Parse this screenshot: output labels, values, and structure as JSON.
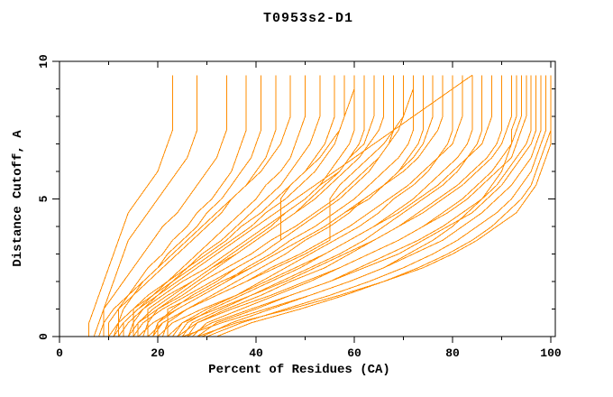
{
  "page": {
    "background": "#ffffff"
  },
  "chart_data": {
    "type": "line",
    "title": "T0953s2-D1",
    "xlabel": "Percent of Residues (CA)",
    "ylabel": "Distance Cutoff, A",
    "xlim": [
      0,
      101
    ],
    "ylim": [
      0,
      10
    ],
    "x_major_ticks": [
      0,
      20,
      40,
      60,
      80,
      100
    ],
    "x_major_tick_labels": [
      "0",
      "20",
      "40",
      "60",
      "80",
      "100"
    ],
    "x_minor_ticks": [
      10,
      30,
      50,
      70,
      90
    ],
    "y_major_ticks": [
      0,
      5,
      10
    ],
    "y_major_tick_labels": [
      "0",
      "5",
      "10"
    ],
    "y_minor_ticks": [
      1,
      2,
      3,
      4,
      6,
      7,
      8,
      9
    ],
    "grid": false,
    "legend": false,
    "line_color": "#ff8c00",
    "axis_color": "#000000",
    "cutoffs": [
      0,
      0.5,
      1,
      1.5,
      2,
      2.5,
      3,
      3.5,
      4,
      4.5,
      5,
      5.5,
      6,
      6.5,
      7,
      7.5,
      8,
      8.5,
      9,
      9.5
    ],
    "curves": [
      [
        6,
        6,
        7,
        8,
        9,
        10,
        11,
        12,
        13,
        14,
        16,
        18,
        20,
        21,
        22,
        23,
        23,
        23,
        23,
        23
      ],
      [
        7,
        8,
        9,
        10,
        11,
        12,
        13,
        14,
        16,
        18,
        20,
        22,
        24,
        26,
        27,
        28,
        28,
        28,
        28,
        28
      ],
      [
        9,
        9,
        9,
        11,
        13,
        15,
        17,
        19,
        21,
        24,
        26,
        28,
        30,
        32,
        33,
        34,
        34,
        34,
        34,
        34
      ],
      [
        10,
        10,
        12,
        14,
        16,
        18,
        21,
        23,
        26,
        28,
        31,
        33,
        35,
        36,
        37,
        38,
        38,
        38,
        38,
        38
      ],
      [
        11,
        12,
        13,
        15,
        17,
        20,
        22,
        25,
        28,
        30,
        33,
        35,
        37,
        39,
        40,
        41,
        41,
        41,
        41,
        41
      ],
      [
        12,
        12,
        12,
        15,
        18,
        21,
        24,
        27,
        30,
        33,
        35,
        38,
        40,
        42,
        43,
        44,
        44,
        44,
        44,
        44
      ],
      [
        8,
        9,
        11,
        14,
        17,
        20,
        23,
        26,
        29,
        32,
        35,
        38,
        41,
        43,
        45,
        46,
        47,
        47,
        47,
        47
      ],
      [
        13,
        13,
        16,
        19,
        22,
        25,
        28,
        31,
        34,
        37,
        40,
        42,
        45,
        47,
        48,
        49,
        50,
        50,
        50,
        50
      ],
      [
        14,
        15,
        17,
        20,
        23,
        26,
        29,
        33,
        36,
        39,
        42,
        45,
        47,
        49,
        51,
        52,
        53,
        53,
        53,
        53
      ],
      [
        15,
        15,
        15,
        18,
        22,
        26,
        30,
        34,
        37,
        41,
        44,
        47,
        50,
        52,
        54,
        55,
        56,
        56,
        56,
        56
      ],
      [
        10,
        12,
        15,
        19,
        23,
        27,
        31,
        35,
        39,
        42,
        46,
        49,
        52,
        54,
        56,
        57,
        58,
        58,
        58,
        58
      ],
      [
        16,
        16,
        19,
        23,
        27,
        31,
        35,
        39,
        43,
        46,
        50,
        53,
        55,
        57,
        59,
        60,
        60,
        60,
        60,
        60
      ],
      [
        17,
        18,
        20,
        24,
        28,
        32,
        36,
        40,
        44,
        48,
        51,
        54,
        57,
        59,
        61,
        62,
        62,
        62,
        62,
        62
      ],
      [
        12,
        14,
        17,
        21,
        25,
        30,
        34,
        38,
        42,
        46,
        50,
        53,
        57,
        59,
        62,
        63,
        64,
        64,
        64,
        64
      ],
      [
        18,
        18,
        18,
        22,
        27,
        31,
        36,
        40,
        44,
        48,
        52,
        55,
        58,
        61,
        63,
        65,
        66,
        66,
        66,
        66
      ],
      [
        19,
        20,
        23,
        27,
        32,
        36,
        41,
        45,
        49,
        53,
        57,
        60,
        63,
        65,
        67,
        68,
        68,
        68,
        68,
        68
      ],
      [
        14,
        16,
        20,
        25,
        29,
        34,
        39,
        43,
        48,
        52,
        56,
        59,
        62,
        65,
        67,
        69,
        70,
        70,
        70,
        70
      ],
      [
        20,
        20,
        24,
        29,
        34,
        38,
        43,
        47,
        52,
        56,
        60,
        63,
        66,
        69,
        71,
        72,
        72,
        72,
        72,
        72
      ],
      [
        21,
        22,
        26,
        31,
        36,
        41,
        46,
        50,
        55,
        59,
        62,
        66,
        69,
        71,
        73,
        74,
        74,
        74,
        74,
        74
      ],
      [
        16,
        19,
        24,
        29,
        34,
        39,
        44,
        49,
        54,
        58,
        62,
        66,
        69,
        72,
        74,
        75,
        76,
        76,
        76,
        76
      ],
      [
        22,
        22,
        22,
        28,
        33,
        39,
        44,
        49,
        54,
        58,
        63,
        66,
        70,
        73,
        75,
        77,
        78,
        78,
        78,
        78
      ],
      [
        23,
        25,
        30,
        36,
        41,
        46,
        51,
        56,
        61,
        65,
        68,
        72,
        75,
        77,
        79,
        80,
        80,
        80,
        80,
        80
      ],
      [
        18,
        21,
        26,
        32,
        38,
        43,
        49,
        54,
        59,
        63,
        67,
        71,
        74,
        77,
        80,
        81,
        82,
        82,
        82,
        82
      ],
      [
        24,
        26,
        31,
        37,
        43,
        49,
        54,
        59,
        64,
        68,
        72,
        75,
        78,
        81,
        83,
        84,
        84,
        84,
        84,
        84
      ],
      [
        25,
        27,
        33,
        39,
        45,
        51,
        57,
        62,
        66,
        70,
        74,
        78,
        81,
        83,
        85,
        86,
        86,
        86,
        86,
        86
      ],
      [
        20,
        23,
        29,
        36,
        42,
        48,
        54,
        59,
        64,
        69,
        73,
        77,
        80,
        83,
        86,
        87,
        88,
        88,
        88,
        88
      ],
      [
        26,
        28,
        34,
        41,
        47,
        54,
        59,
        64,
        69,
        73,
        77,
        81,
        84,
        87,
        89,
        90,
        90,
        90,
        90,
        90
      ],
      [
        22,
        25,
        32,
        39,
        46,
        52,
        58,
        64,
        69,
        74,
        78,
        82,
        85,
        88,
        90,
        91,
        92,
        92,
        92,
        92
      ],
      [
        27,
        30,
        37,
        44,
        51,
        57,
        63,
        69,
        74,
        78,
        82,
        85,
        88,
        90,
        92,
        93,
        94,
        94,
        94,
        94
      ],
      [
        24,
        28,
        35,
        43,
        50,
        57,
        63,
        69,
        74,
        79,
        83,
        86,
        89,
        92,
        93,
        94,
        95,
        95,
        95,
        95
      ],
      [
        28,
        32,
        40,
        47,
        55,
        61,
        67,
        73,
        78,
        82,
        86,
        89,
        91,
        93,
        95,
        96,
        96,
        96,
        96,
        96
      ],
      [
        26,
        31,
        39,
        47,
        55,
        62,
        69,
        74,
        79,
        84,
        87,
        90,
        92,
        94,
        96,
        97,
        97,
        97,
        97,
        97
      ],
      [
        29,
        35,
        43,
        51,
        59,
        66,
        72,
        78,
        82,
        86,
        89,
        92,
        94,
        96,
        97,
        98,
        98,
        98,
        98,
        98
      ],
      [
        30,
        37,
        46,
        55,
        63,
        70,
        76,
        81,
        85,
        89,
        92,
        94,
        96,
        97,
        98,
        99,
        99,
        99,
        99,
        99
      ],
      [
        32,
        39,
        49,
        58,
        66,
        73,
        79,
        84,
        88,
        91,
        94,
        96,
        97,
        98,
        99,
        100,
        100,
        100,
        100,
        100
      ],
      [
        28,
        36,
        47,
        57,
        66,
        74,
        80,
        85,
        89,
        93,
        95,
        97,
        98,
        99,
        100,
        100,
        100,
        100,
        100,
        100
      ],
      [
        15,
        17,
        21,
        26,
        31,
        36,
        41,
        45,
        45,
        45,
        45,
        47,
        50,
        53,
        55,
        57,
        58,
        59,
        60,
        60
      ],
      [
        19,
        21,
        26,
        32,
        38,
        44,
        50,
        55,
        55,
        55,
        55,
        57,
        60,
        63,
        66,
        68,
        70,
        71,
        72,
        72
      ],
      [
        11,
        13,
        16,
        20,
        24,
        28,
        32,
        36,
        40,
        44,
        48,
        52,
        56,
        60,
        64,
        68,
        72,
        76,
        80,
        84
      ],
      [
        25,
        33,
        42,
        51,
        59,
        66,
        71,
        76,
        80,
        83,
        86,
        88,
        90,
        91,
        92,
        92,
        93,
        93,
        93,
        93
      ]
    ]
  }
}
